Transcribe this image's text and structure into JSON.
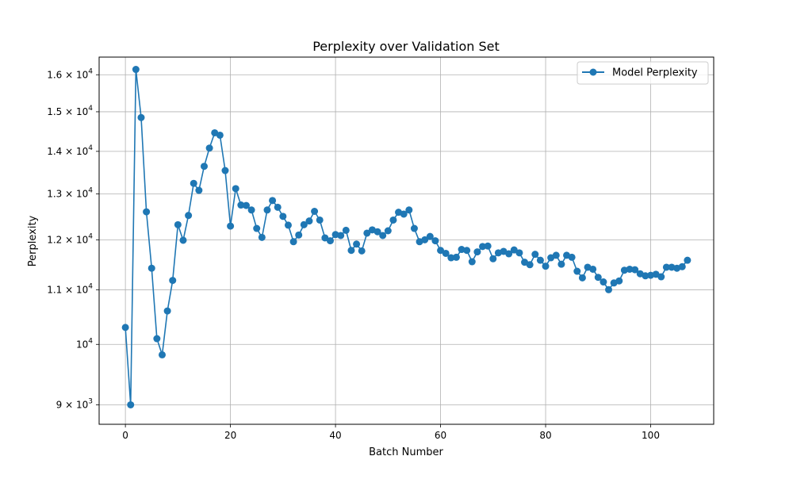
{
  "chart_data": {
    "type": "line",
    "title": "Perplexity over Validation Set",
    "xlabel": "Batch Number",
    "ylabel": "Perplexity",
    "xlim": [
      -5,
      112
    ],
    "ylim": [
      8700,
      16500
    ],
    "yscale": "log",
    "grid": true,
    "legend_position": "top-right",
    "x_ticks": [
      0,
      20,
      40,
      60,
      80,
      100
    ],
    "y_ticks": [
      {
        "value": 9000,
        "mantissa": "9",
        "op": "×",
        "base": "10",
        "exp": "3"
      },
      {
        "value": 10000,
        "mantissa": "",
        "op": "",
        "base": "10",
        "exp": "4"
      },
      {
        "value": 11000,
        "mantissa": "1.1",
        "op": "×",
        "base": "10",
        "exp": "4"
      },
      {
        "value": 12000,
        "mantissa": "1.2",
        "op": "×",
        "base": "10",
        "exp": "4"
      },
      {
        "value": 13000,
        "mantissa": "1.3",
        "op": "×",
        "base": "10",
        "exp": "4"
      },
      {
        "value": 14000,
        "mantissa": "1.4",
        "op": "×",
        "base": "10",
        "exp": "4"
      },
      {
        "value": 15000,
        "mantissa": "1.5",
        "op": "×",
        "base": "10",
        "exp": "4"
      },
      {
        "value": 16000,
        "mantissa": "1.6",
        "op": "×",
        "base": "10",
        "exp": "4"
      }
    ],
    "series": [
      {
        "name": "Model Perplexity",
        "color": "#1f77b4",
        "marker": "circle",
        "values": [
          10300,
          9000,
          16150,
          14850,
          12600,
          11420,
          10100,
          9820,
          10600,
          11180,
          12320,
          11990,
          12520,
          13240,
          13080,
          13640,
          14080,
          14460,
          14400,
          13540,
          12290,
          13120,
          12750,
          12740,
          12640,
          12240,
          12050,
          12640,
          12850,
          12700,
          12500,
          12310,
          11960,
          12100,
          12320,
          12400,
          12610,
          12420,
          12040,
          11980,
          12110,
          12090,
          12200,
          11780,
          11910,
          11770,
          12140,
          12210,
          12170,
          12090,
          12190,
          12420,
          12590,
          12550,
          12640,
          12240,
          11960,
          12000,
          12070,
          11980,
          11780,
          11720,
          11630,
          11640,
          11800,
          11780,
          11550,
          11750,
          11860,
          11870,
          11610,
          11730,
          11760,
          11710,
          11790,
          11730,
          11540,
          11490,
          11700,
          11580,
          11460,
          11630,
          11680,
          11500,
          11680,
          11640,
          11360,
          11230,
          11440,
          11400,
          11240,
          11150,
          11000,
          11130,
          11170,
          11380,
          11400,
          11390,
          11310,
          11270,
          11280,
          11300,
          11250,
          11440,
          11440,
          11420,
          11450,
          11580
        ]
      }
    ]
  }
}
